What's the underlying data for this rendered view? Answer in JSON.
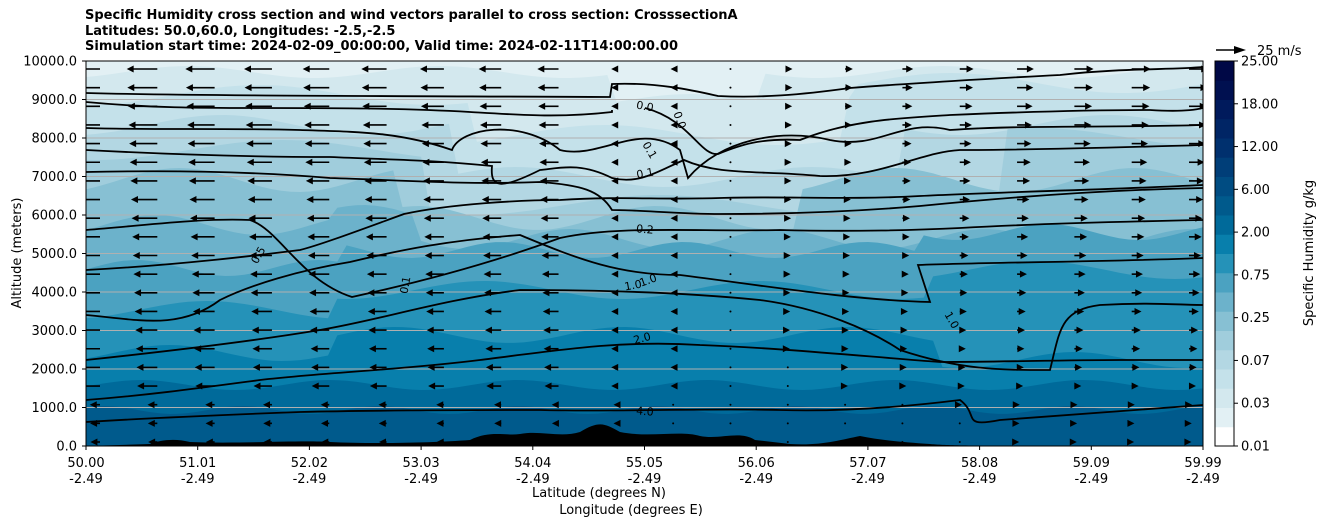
{
  "chart_data": {
    "type": "heatmap",
    "title_lines": [
      "Specific Humidity cross section and wind vectors parallel to cross section: CrosssectionA",
      "Latitudes: 50.0,60.0, Longitudes: -2.5,-2.5",
      "Simulation start time: 2024-02-09_00:00:00, Valid time: 2024-02-11T14:00:00.00"
    ],
    "ylabel": "Altitude (meters)",
    "xlabel_lines": [
      "Latitude (degrees N)",
      "Longitude (degrees E)"
    ],
    "ylim": [
      0,
      10000
    ],
    "y_ticks": [
      "0.0",
      "1000.0",
      "2000.0",
      "3000.0",
      "4000.0",
      "5000.0",
      "6000.0",
      "7000.0",
      "8000.0",
      "9000.0",
      "10000.0"
    ],
    "x_ticks": [
      {
        "lat": "50.00",
        "lon": "-2.49"
      },
      {
        "lat": "51.01",
        "lon": "-2.49"
      },
      {
        "lat": "52.02",
        "lon": "-2.49"
      },
      {
        "lat": "53.03",
        "lon": "-2.49"
      },
      {
        "lat": "54.04",
        "lon": "-2.49"
      },
      {
        "lat": "55.05",
        "lon": "-2.49"
      },
      {
        "lat": "56.06",
        "lon": "-2.49"
      },
      {
        "lat": "57.07",
        "lon": "-2.49"
      },
      {
        "lat": "58.08",
        "lon": "-2.49"
      },
      {
        "lat": "59.09",
        "lon": "-2.49"
      },
      {
        "lat": "59.99",
        "lon": "-2.49"
      }
    ],
    "grid": "horizontal",
    "colorbar": {
      "label": "Specific Humidity g/kg",
      "levels": [
        0.01,
        0.02,
        0.03,
        0.05,
        0.07,
        0.1,
        0.25,
        0.5,
        0.75,
        1.0,
        2.0,
        4.0,
        6.0,
        9.0,
        12.0,
        15.0,
        18.0,
        21.0,
        25.0
      ],
      "tick_labels": [
        "0.01",
        "0.03",
        "0.07",
        "0.25",
        "0.75",
        "2.00",
        "6.00",
        "12.00",
        "18.00",
        "25.00"
      ],
      "colors": [
        "#ffffff",
        "#e2f0f4",
        "#d3e8ee",
        "#c4e1ea",
        "#b3d7e3",
        "#a0cddc",
        "#87c0d3",
        "#6cb2cb",
        "#4ba2c1",
        "#2592b8",
        "#087fac",
        "#006a9a",
        "#005a8c",
        "#004c82",
        "#003e78",
        "#00306e",
        "#002565",
        "#001a5c",
        "#001050",
        "#000846"
      ]
    },
    "contour_labels": [
      "0.0",
      "0.0",
      "0.1",
      "0.1",
      "0.2",
      "0.5",
      "0.1",
      "1.0",
      "1.0",
      "1.0",
      "2.0",
      "4.0"
    ],
    "wind_key_label": "25 m/s"
  }
}
